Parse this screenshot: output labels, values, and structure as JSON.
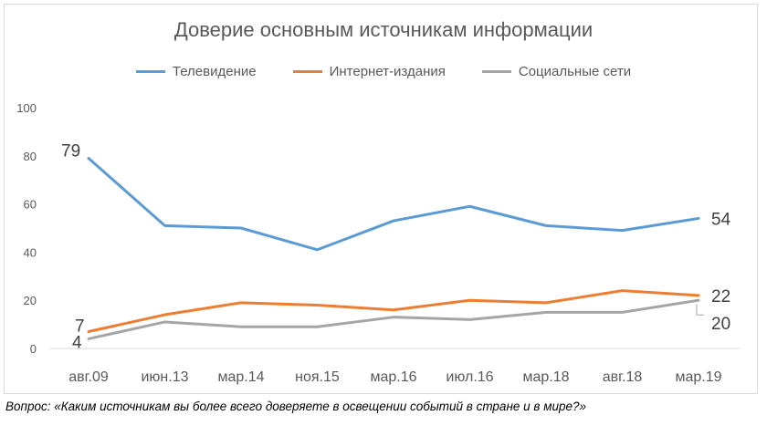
{
  "chart_data": {
    "type": "line",
    "title": "Доверие основным источникам информации",
    "categories": [
      "авг.09",
      "июн.13",
      "мар.14",
      "ноя.15",
      "мар.16",
      "июл.16",
      "мар.18",
      "авг.18",
      "мар.19"
    ],
    "series": [
      {
        "name": "Телевидение",
        "color": "#5b9bd5",
        "values": [
          79,
          51,
          50,
          41,
          53,
          59,
          51,
          49,
          54
        ],
        "labels": [
          {
            "index": 0,
            "text": "79"
          },
          {
            "index": 8,
            "text": "54"
          }
        ]
      },
      {
        "name": "Интернет-издания",
        "color": "#ed7d31",
        "values": [
          7,
          14,
          19,
          18,
          16,
          20,
          19,
          24,
          22
        ],
        "labels": [
          {
            "index": 0,
            "text": "7"
          },
          {
            "index": 8,
            "text": "22"
          }
        ]
      },
      {
        "name": "Социальные сети",
        "color": "#a5a5a5",
        "values": [
          4,
          11,
          9,
          9,
          13,
          12,
          15,
          15,
          20
        ],
        "labels": [
          {
            "index": 0,
            "text": "4"
          },
          {
            "index": 8,
            "text": "20"
          }
        ]
      }
    ],
    "yticks": [
      "0",
      "20",
      "40",
      "60",
      "80",
      "100"
    ],
    "ylim": [
      0,
      100
    ],
    "grid": false,
    "legend_position": "top"
  },
  "question": "Вопрос: «Каким источникам вы более всего доверяете в освещении событий в стране и в мире?»"
}
